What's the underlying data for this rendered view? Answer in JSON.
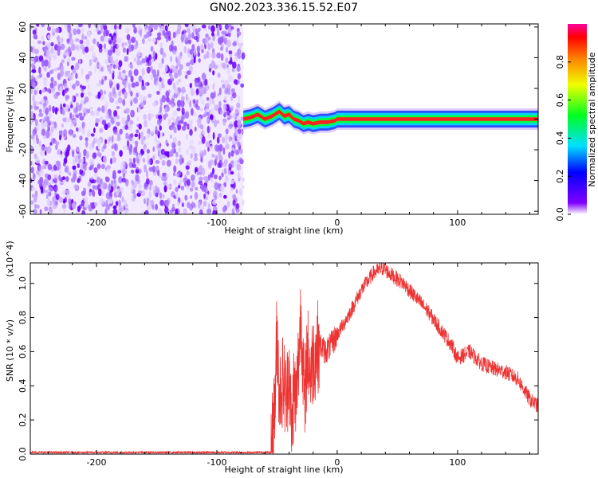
{
  "title": "GN02.2023.336.15.52.E07",
  "chart_data": [
    {
      "type": "heatmap",
      "xlabel": "Height of straight line (km)",
      "ylabel": "Frequency (Hz)",
      "xlim": [
        -255,
        167
      ],
      "ylim": [
        -62,
        62
      ],
      "xticks": [
        -200,
        -100,
        0,
        100
      ],
      "yticks": [
        -60,
        -40,
        -20,
        0,
        20,
        40,
        60
      ],
      "grid": false,
      "noise_region": {
        "x_range": [
          -255,
          -78
        ],
        "y_range": [
          -62,
          62
        ]
      },
      "signal_track": {
        "x": [
          -78,
          -72,
          -66,
          -60,
          -54,
          -48,
          -44,
          -40,
          -36,
          -32,
          -28,
          -24,
          -20,
          -14,
          -8,
          -2,
          0,
          40,
          80,
          120,
          167
        ],
        "y": [
          0,
          1,
          3,
          0,
          2,
          5,
          2,
          3,
          0,
          -1,
          -3,
          -2,
          -3,
          -2,
          -2,
          -1,
          0,
          0,
          0,
          0,
          0
        ],
        "peak_amplitude": 1.0
      },
      "colorbar": {
        "label": "Normalized spectral amplitude",
        "ticks": [
          "0.0",
          "0.2",
          "0.4",
          "0.6",
          "0.8"
        ],
        "range": [
          0,
          1
        ]
      },
      "colors": {
        "noise": "#6a00ff",
        "low": "#c9a7ff",
        "mid": "#00ff40",
        "high": "#ff2020"
      }
    },
    {
      "type": "line",
      "xlabel": "Height of straight line (km)",
      "ylabel": "SNR (10 * v/v)",
      "scale_note": "(x10^4)",
      "xlim": [
        -255,
        167
      ],
      "ylim": [
        0,
        1.12
      ],
      "xticks": [
        -200,
        -100,
        0,
        100
      ],
      "yticks": [
        "0.0",
        "0.2",
        "0.4",
        "0.6",
        "0.8",
        "1.0"
      ],
      "grid": false,
      "color": "#ee3333",
      "series": [
        {
          "x": [
            -255,
            -150,
            -55,
            -52,
            -50,
            -48,
            -45,
            -42,
            -40,
            -38,
            -36,
            -34,
            -30,
            -27,
            -25,
            -22,
            -20,
            -15,
            -10,
            -5,
            0,
            10,
            20,
            30,
            38,
            45,
            55,
            65,
            75,
            85,
            95,
            100,
            110,
            120,
            130,
            140,
            150,
            160,
            167
          ],
          "y": [
            0.01,
            0.01,
            0.01,
            0.25,
            0.72,
            0.35,
            0.45,
            0.3,
            0.55,
            0.1,
            0.4,
            0.3,
            0.85,
            0.25,
            0.62,
            0.48,
            0.56,
            0.65,
            0.6,
            0.64,
            0.7,
            0.82,
            0.96,
            1.06,
            1.09,
            1.05,
            1.0,
            0.92,
            0.84,
            0.74,
            0.64,
            0.56,
            0.6,
            0.53,
            0.5,
            0.48,
            0.44,
            0.32,
            0.28
          ]
        }
      ]
    }
  ]
}
